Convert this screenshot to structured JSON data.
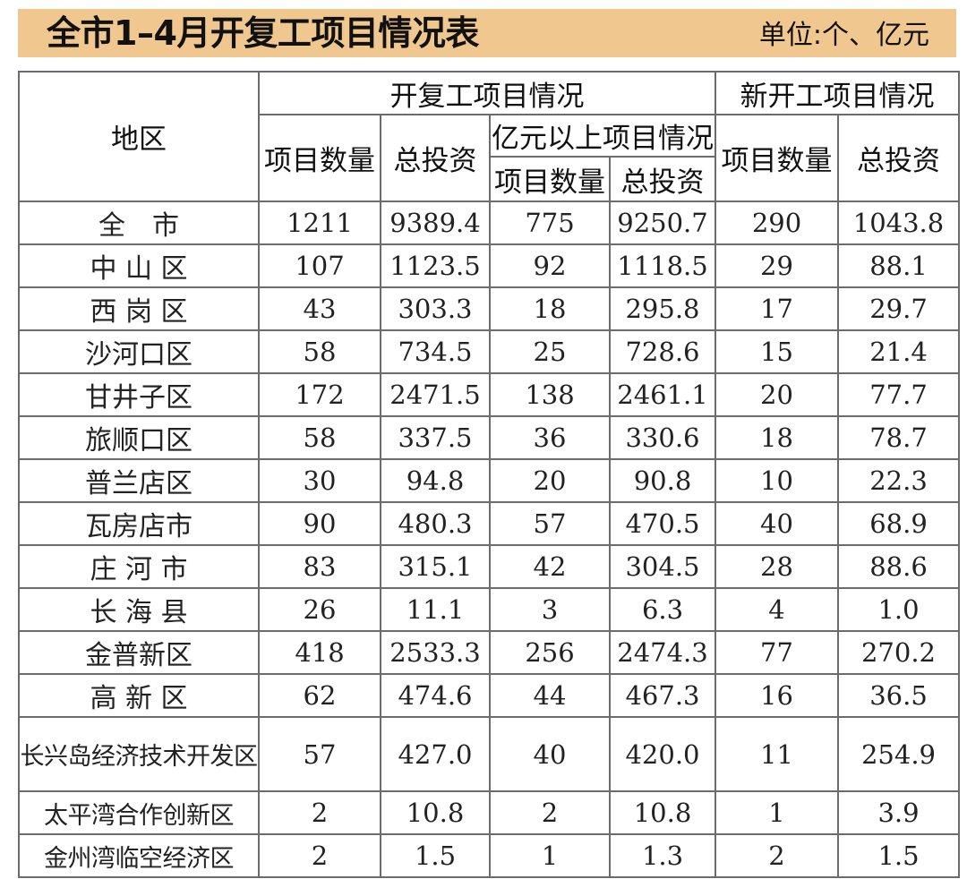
{
  "header": {
    "title": "全市1–4月开复工项目情况表",
    "unit": "单位:个、亿元"
  },
  "columns": {
    "region": "地区",
    "group_resumed": "开复工项目情况",
    "group_new": "新开工项目情况",
    "subgroup_large": "亿元以上项目情况",
    "count": "项目数量",
    "investment": "总投资"
  },
  "rows": [
    {
      "region": "全　市",
      "count": "1211",
      "investment": "9389.4",
      "large_count": "775",
      "large_investment": "9250.7",
      "new_count": "290",
      "new_investment": "1043.8"
    },
    {
      "region": "中 山 区",
      "count": "107",
      "investment": "1123.5",
      "large_count": "92",
      "large_investment": "1118.5",
      "new_count": "29",
      "new_investment": "88.1"
    },
    {
      "region": "西 岗 区",
      "count": "43",
      "investment": "303.3",
      "large_count": "18",
      "large_investment": "295.8",
      "new_count": "17",
      "new_investment": "29.7"
    },
    {
      "region": "沙河口区",
      "count": "58",
      "investment": "734.5",
      "large_count": "25",
      "large_investment": "728.6",
      "new_count": "15",
      "new_investment": "21.4"
    },
    {
      "region": "甘井子区",
      "count": "172",
      "investment": "2471.5",
      "large_count": "138",
      "large_investment": "2461.1",
      "new_count": "20",
      "new_investment": "77.7"
    },
    {
      "region": "旅顺口区",
      "count": "58",
      "investment": "337.5",
      "large_count": "36",
      "large_investment": "330.6",
      "new_count": "18",
      "new_investment": "78.7"
    },
    {
      "region": "普兰店区",
      "count": "30",
      "investment": "94.8",
      "large_count": "20",
      "large_investment": "90.8",
      "new_count": "10",
      "new_investment": "22.3"
    },
    {
      "region": "瓦房店市",
      "count": "90",
      "investment": "480.3",
      "large_count": "57",
      "large_investment": "470.5",
      "new_count": "40",
      "new_investment": "68.9"
    },
    {
      "region": "庄 河 市",
      "count": "83",
      "investment": "315.1",
      "large_count": "42",
      "large_investment": "304.5",
      "new_count": "28",
      "new_investment": "88.6"
    },
    {
      "region": "长 海 县",
      "count": "26",
      "investment": "11.1",
      "large_count": "3",
      "large_investment": "6.3",
      "new_count": "4",
      "new_investment": "1.0"
    },
    {
      "region": "金普新区",
      "count": "418",
      "investment": "2533.3",
      "large_count": "256",
      "large_investment": "2474.3",
      "new_count": "77",
      "new_investment": "270.2"
    },
    {
      "region": "高 新 区",
      "count": "62",
      "investment": "474.6",
      "large_count": "44",
      "large_investment": "467.3",
      "new_count": "16",
      "new_investment": "36.5"
    },
    {
      "region": "长兴岛经济技术开发区",
      "count": "57",
      "investment": "427.0",
      "large_count": "40",
      "large_investment": "420.0",
      "new_count": "11",
      "new_investment": "254.9"
    },
    {
      "region": "太平湾合作创新区",
      "count": "2",
      "investment": "10.8",
      "large_count": "2",
      "large_investment": "10.8",
      "new_count": "1",
      "new_investment": "3.9"
    },
    {
      "region": "金州湾临空经济区",
      "count": "2",
      "investment": "1.5",
      "large_count": "1",
      "large_investment": "1.3",
      "new_count": "2",
      "new_investment": "1.5"
    }
  ],
  "colors": {
    "title_bar": "#efc78f",
    "border": "#6b6b6b"
  }
}
